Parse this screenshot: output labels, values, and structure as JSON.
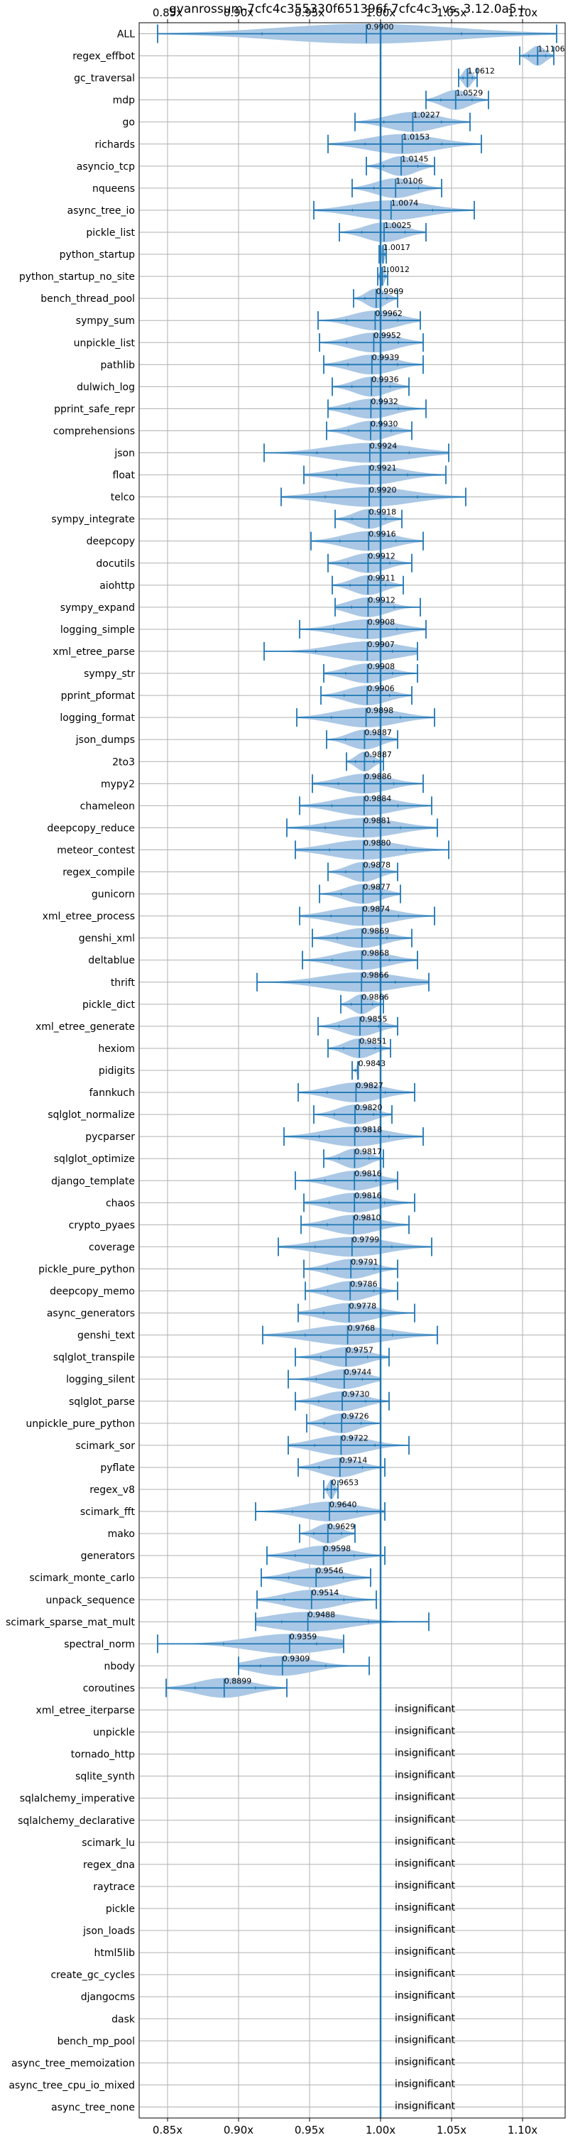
{
  "chart_data": {
    "type": "violin",
    "title": "gvanrossum-7cfc4c355330f651396f-7cfc4c3 vs. 3.12.0a5+",
    "xlabel": "",
    "ylabel": "",
    "xlim": [
      0.83,
      1.13
    ],
    "xticks": [
      0.85,
      0.9,
      0.95,
      1.0,
      1.05,
      1.1
    ],
    "xtick_labels": [
      "0.85x",
      "0.90x",
      "0.95x",
      "1.00x",
      "1.05x",
      "1.10x"
    ],
    "reference_line": 1.0,
    "grid": true,
    "colors": {
      "accent": "#1f77b4",
      "violin": "#aac8e5",
      "grid": "#b0b0b0"
    },
    "insignificant_label": "insignificant",
    "rows": [
      {
        "name": "ALL",
        "value": 0.99,
        "label": "0.9900",
        "min": 0.843,
        "max": 1.124
      },
      {
        "name": "regex_effbot",
        "value": 1.1106,
        "label": "1.1106",
        "min": 1.098,
        "max": 1.122
      },
      {
        "name": "gc_traversal",
        "value": 1.0612,
        "label": "1.0612",
        "min": 1.055,
        "max": 1.068
      },
      {
        "name": "mdp",
        "value": 1.0529,
        "label": "1.0529",
        "min": 1.032,
        "max": 1.076
      },
      {
        "name": "go",
        "value": 1.0227,
        "label": "1.0227",
        "min": 0.982,
        "max": 1.063
      },
      {
        "name": "richards",
        "value": 1.0153,
        "label": "1.0153",
        "min": 0.963,
        "max": 1.071
      },
      {
        "name": "asyncio_tcp",
        "value": 1.0145,
        "label": "1.0145",
        "min": 0.99,
        "max": 1.038
      },
      {
        "name": "nqueens",
        "value": 1.0106,
        "label": "1.0106",
        "min": 0.98,
        "max": 1.043
      },
      {
        "name": "async_tree_io",
        "value": 1.0074,
        "label": "1.0074",
        "min": 0.953,
        "max": 1.066
      },
      {
        "name": "pickle_list",
        "value": 1.0025,
        "label": "1.0025",
        "min": 0.971,
        "max": 1.032
      },
      {
        "name": "python_startup",
        "value": 1.0017,
        "label": "1.0017",
        "min": 0.999,
        "max": 1.004
      },
      {
        "name": "python_startup_no_site",
        "value": 1.0012,
        "label": "1.0012",
        "min": 0.998,
        "max": 1.005
      },
      {
        "name": "bench_thread_pool",
        "value": 0.9969,
        "label": "0.9969",
        "min": 0.981,
        "max": 1.012
      },
      {
        "name": "sympy_sum",
        "value": 0.9962,
        "label": "0.9962",
        "min": 0.956,
        "max": 1.028
      },
      {
        "name": "unpickle_list",
        "value": 0.9952,
        "label": "0.9952",
        "min": 0.957,
        "max": 1.03
      },
      {
        "name": "pathlib",
        "value": 0.9939,
        "label": "0.9939",
        "min": 0.96,
        "max": 1.03
      },
      {
        "name": "dulwich_log",
        "value": 0.9936,
        "label": "0.9936",
        "min": 0.966,
        "max": 1.02
      },
      {
        "name": "pprint_safe_repr",
        "value": 0.9932,
        "label": "0.9932",
        "min": 0.963,
        "max": 1.032
      },
      {
        "name": "comprehensions",
        "value": 0.993,
        "label": "0.9930",
        "min": 0.962,
        "max": 1.022
      },
      {
        "name": "json",
        "value": 0.9924,
        "label": "0.9924",
        "min": 0.918,
        "max": 1.048
      },
      {
        "name": "float",
        "value": 0.9921,
        "label": "0.9921",
        "min": 0.946,
        "max": 1.046
      },
      {
        "name": "telco",
        "value": 0.992,
        "label": "0.9920",
        "min": 0.93,
        "max": 1.06
      },
      {
        "name": "sympy_integrate",
        "value": 0.9918,
        "label": "0.9918",
        "min": 0.968,
        "max": 1.015
      },
      {
        "name": "deepcopy",
        "value": 0.9916,
        "label": "0.9916",
        "min": 0.951,
        "max": 1.03
      },
      {
        "name": "docutils",
        "value": 0.9912,
        "label": "0.9912",
        "min": 0.963,
        "max": 1.022
      },
      {
        "name": "aiohttp",
        "value": 0.9911,
        "label": "0.9911",
        "min": 0.966,
        "max": 1.016
      },
      {
        "name": "sympy_expand",
        "value": 0.9912,
        "label": "0.9912",
        "min": 0.968,
        "max": 1.028
      },
      {
        "name": "logging_simple",
        "value": 0.9908,
        "label": "0.9908",
        "min": 0.943,
        "max": 1.032
      },
      {
        "name": "xml_etree_parse",
        "value": 0.9907,
        "label": "0.9907",
        "min": 0.918,
        "max": 1.026
      },
      {
        "name": "sympy_str",
        "value": 0.9908,
        "label": "0.9908",
        "min": 0.96,
        "max": 1.026
      },
      {
        "name": "pprint_pformat",
        "value": 0.9906,
        "label": "0.9906",
        "min": 0.958,
        "max": 1.022
      },
      {
        "name": "logging_format",
        "value": 0.9898,
        "label": "0.9898",
        "min": 0.941,
        "max": 1.038
      },
      {
        "name": "json_dumps",
        "value": 0.9887,
        "label": "0.9887",
        "min": 0.962,
        "max": 1.012
      },
      {
        "name": "2to3",
        "value": 0.9887,
        "label": "0.9887",
        "min": 0.976,
        "max": 1.002
      },
      {
        "name": "mypy2",
        "value": 0.9886,
        "label": "0.9886",
        "min": 0.952,
        "max": 1.03
      },
      {
        "name": "chameleon",
        "value": 0.9884,
        "label": "0.9884",
        "min": 0.943,
        "max": 1.036
      },
      {
        "name": "deepcopy_reduce",
        "value": 0.9881,
        "label": "0.9881",
        "min": 0.934,
        "max": 1.04
      },
      {
        "name": "meteor_contest",
        "value": 0.988,
        "label": "0.9880",
        "min": 0.94,
        "max": 1.048
      },
      {
        "name": "regex_compile",
        "value": 0.9878,
        "label": "0.9878",
        "min": 0.963,
        "max": 1.012
      },
      {
        "name": "gunicorn",
        "value": 0.9877,
        "label": "0.9877",
        "min": 0.957,
        "max": 1.014
      },
      {
        "name": "xml_etree_process",
        "value": 0.9874,
        "label": "0.9874",
        "min": 0.943,
        "max": 1.038
      },
      {
        "name": "genshi_xml",
        "value": 0.9869,
        "label": "0.9869",
        "min": 0.952,
        "max": 1.022
      },
      {
        "name": "deltablue",
        "value": 0.9868,
        "label": "0.9868",
        "min": 0.945,
        "max": 1.026
      },
      {
        "name": "thrift",
        "value": 0.9866,
        "label": "0.9866",
        "min": 0.913,
        "max": 1.034
      },
      {
        "name": "pickle_dict",
        "value": 0.9866,
        "label": "0.9866",
        "min": 0.972,
        "max": 1.002
      },
      {
        "name": "xml_etree_generate",
        "value": 0.9855,
        "label": "0.9855",
        "min": 0.956,
        "max": 1.012
      },
      {
        "name": "hexiom",
        "value": 0.9851,
        "label": "0.9851",
        "min": 0.963,
        "max": 1.007
      },
      {
        "name": "pidigits",
        "value": 0.9843,
        "label": "0.9843",
        "min": 0.98,
        "max": 0.984
      },
      {
        "name": "fannkuch",
        "value": 0.9827,
        "label": "0.9827",
        "min": 0.942,
        "max": 1.024
      },
      {
        "name": "sqlglot_normalize",
        "value": 0.982,
        "label": "0.9820",
        "min": 0.953,
        "max": 1.008
      },
      {
        "name": "pycparser",
        "value": 0.9818,
        "label": "0.9818",
        "min": 0.932,
        "max": 1.03
      },
      {
        "name": "sqlglot_optimize",
        "value": 0.9817,
        "label": "0.9817",
        "min": 0.96,
        "max": 1.002
      },
      {
        "name": "django_template",
        "value": 0.9816,
        "label": "0.9816",
        "min": 0.94,
        "max": 1.012
      },
      {
        "name": "chaos",
        "value": 0.9816,
        "label": "0.9816",
        "min": 0.946,
        "max": 1.024
      },
      {
        "name": "crypto_pyaes",
        "value": 0.981,
        "label": "0.9810",
        "min": 0.944,
        "max": 1.02
      },
      {
        "name": "coverage",
        "value": 0.9799,
        "label": "0.9799",
        "min": 0.928,
        "max": 1.036
      },
      {
        "name": "pickle_pure_python",
        "value": 0.9791,
        "label": "0.9791",
        "min": 0.946,
        "max": 1.012
      },
      {
        "name": "deepcopy_memo",
        "value": 0.9786,
        "label": "0.9786",
        "min": 0.947,
        "max": 1.012
      },
      {
        "name": "async_generators",
        "value": 0.9778,
        "label": "0.9778",
        "min": 0.942,
        "max": 1.024
      },
      {
        "name": "genshi_text",
        "value": 0.9768,
        "label": "0.9768",
        "min": 0.917,
        "max": 1.04
      },
      {
        "name": "sqlglot_transpile",
        "value": 0.9757,
        "label": "0.9757",
        "min": 0.94,
        "max": 1.006
      },
      {
        "name": "logging_silent",
        "value": 0.9744,
        "label": "0.9744",
        "min": 0.935,
        "max": 1.0
      },
      {
        "name": "sqlglot_parse",
        "value": 0.973,
        "label": "0.9730",
        "min": 0.94,
        "max": 1.006
      },
      {
        "name": "unpickle_pure_python",
        "value": 0.9726,
        "label": "0.9726",
        "min": 0.948,
        "max": 1.0
      },
      {
        "name": "scimark_sor",
        "value": 0.9722,
        "label": "0.9722",
        "min": 0.935,
        "max": 1.02
      },
      {
        "name": "pyflate",
        "value": 0.9714,
        "label": "0.9714",
        "min": 0.942,
        "max": 1.003
      },
      {
        "name": "regex_v8",
        "value": 0.9653,
        "label": "0.9653",
        "min": 0.96,
        "max": 0.97
      },
      {
        "name": "scimark_fft",
        "value": 0.964,
        "label": "0.9640",
        "min": 0.912,
        "max": 1.003
      },
      {
        "name": "mako",
        "value": 0.9629,
        "label": "0.9629",
        "min": 0.943,
        "max": 0.982
      },
      {
        "name": "generators",
        "value": 0.9598,
        "label": "0.9598",
        "min": 0.92,
        "max": 1.003
      },
      {
        "name": "scimark_monte_carlo",
        "value": 0.9546,
        "label": "0.9546",
        "min": 0.916,
        "max": 0.993
      },
      {
        "name": "unpack_sequence",
        "value": 0.9514,
        "label": "0.9514",
        "min": 0.913,
        "max": 0.997
      },
      {
        "name": "scimark_sparse_mat_mult",
        "value": 0.9488,
        "label": "0.9488",
        "min": 0.912,
        "max": 1.034
      },
      {
        "name": "spectral_norm",
        "value": 0.9359,
        "label": "0.9359",
        "min": 0.843,
        "max": 0.974
      },
      {
        "name": "nbody",
        "value": 0.9309,
        "label": "0.9309",
        "min": 0.9,
        "max": 0.992
      },
      {
        "name": "coroutines",
        "value": 0.8899,
        "label": "0.8899",
        "min": 0.849,
        "max": 0.934
      },
      {
        "name": "xml_etree_iterparse",
        "insignificant": true
      },
      {
        "name": "unpickle",
        "insignificant": true
      },
      {
        "name": "tornado_http",
        "insignificant": true
      },
      {
        "name": "sqlite_synth",
        "insignificant": true
      },
      {
        "name": "sqlalchemy_imperative",
        "insignificant": true
      },
      {
        "name": "sqlalchemy_declarative",
        "insignificant": true
      },
      {
        "name": "scimark_lu",
        "insignificant": true
      },
      {
        "name": "regex_dna",
        "insignificant": true
      },
      {
        "name": "raytrace",
        "insignificant": true
      },
      {
        "name": "pickle",
        "insignificant": true
      },
      {
        "name": "json_loads",
        "insignificant": true
      },
      {
        "name": "html5lib",
        "insignificant": true
      },
      {
        "name": "create_gc_cycles",
        "insignificant": true
      },
      {
        "name": "djangocms",
        "insignificant": true
      },
      {
        "name": "dask",
        "insignificant": true
      },
      {
        "name": "bench_mp_pool",
        "insignificant": true
      },
      {
        "name": "async_tree_memoization",
        "insignificant": true
      },
      {
        "name": "async_tree_cpu_io_mixed",
        "insignificant": true
      },
      {
        "name": "async_tree_none",
        "insignificant": true
      }
    ]
  }
}
